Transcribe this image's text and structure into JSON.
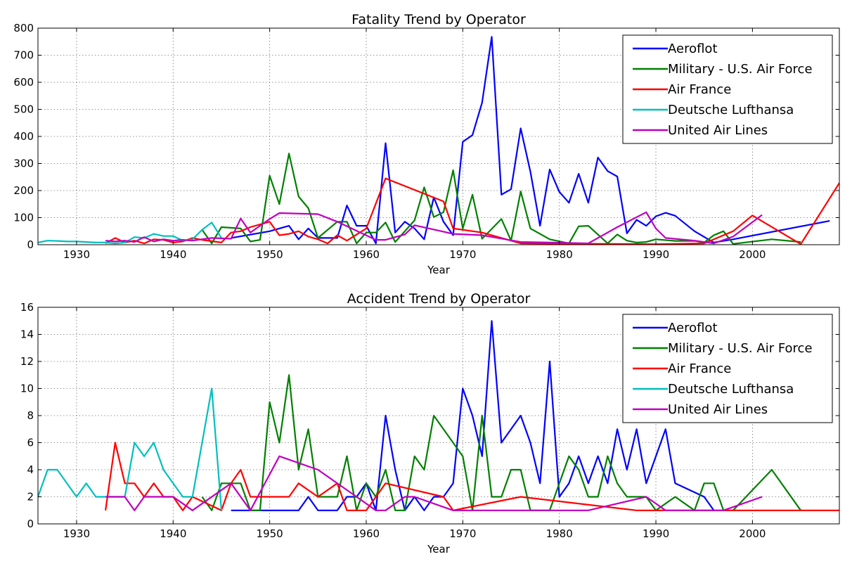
{
  "chart_data": [
    {
      "type": "line",
      "title": "Fatality Trend by Operator",
      "xlabel": "Year",
      "ylabel": "",
      "xlim": [
        1926,
        2009
      ],
      "ylim": [
        0,
        800
      ],
      "xticks": [
        1930,
        1940,
        1950,
        1960,
        1970,
        1980,
        1990,
        2000
      ],
      "yticks": [
        0,
        100,
        200,
        300,
        400,
        500,
        600,
        700,
        800
      ],
      "grid": true,
      "legend_position": "top-right",
      "series": [
        {
          "name": "Aeroflot",
          "color": "#0000ff",
          "x": [
            1946,
            1950,
            1952,
            1953,
            1954,
            1955,
            1957,
            1958,
            1959,
            1960,
            1961,
            1962,
            1963,
            1964,
            1965,
            1966,
            1967,
            1968,
            1969,
            1970,
            1971,
            1972,
            1973,
            1974,
            1975,
            1976,
            1977,
            1978,
            1979,
            1980,
            1981,
            1982,
            1983,
            1984,
            1985,
            1986,
            1987,
            1988,
            1989,
            1990,
            1991,
            1992,
            1994,
            1996,
            1998,
            2008
          ],
          "y": [
            25,
            50,
            70,
            20,
            60,
            25,
            25,
            145,
            70,
            70,
            5,
            375,
            45,
            85,
            60,
            20,
            175,
            85,
            35,
            380,
            405,
            525,
            768,
            185,
            205,
            430,
            270,
            70,
            278,
            195,
            155,
            262,
            155,
            322,
            272,
            252,
            42,
            92,
            70,
            105,
            118,
            107,
            50,
            8,
            20,
            88
          ]
        },
        {
          "name": "Military - U.S. Air Force",
          "color": "#008000",
          "x": [
            1943,
            1944,
            1945,
            1947,
            1948,
            1949,
            1950,
            1951,
            1952,
            1953,
            1954,
            1955,
            1957,
            1958,
            1959,
            1960,
            1961,
            1962,
            1963,
            1965,
            1966,
            1967,
            1968,
            1969,
            1970,
            1971,
            1972,
            1974,
            1975,
            1976,
            1977,
            1979,
            1981,
            1982,
            1983,
            1985,
            1986,
            1987,
            1988,
            1989,
            1990,
            1992,
            1994,
            1995,
            1996,
            1997,
            1998,
            2002,
            2005
          ],
          "y": [
            55,
            5,
            65,
            60,
            12,
            18,
            255,
            150,
            337,
            178,
            135,
            25,
            85,
            85,
            5,
            45,
            45,
            82,
            10,
            90,
            212,
            102,
            120,
            275,
            60,
            185,
            22,
            95,
            15,
            197,
            60,
            20,
            5,
            68,
            70,
            5,
            38,
            15,
            8,
            10,
            20,
            14,
            14,
            8,
            35,
            50,
            3,
            20,
            10
          ]
        },
        {
          "name": "Air France",
          "color": "#ff0000",
          "x": [
            1933,
            1934,
            1935,
            1936,
            1937,
            1938,
            1939,
            1940,
            1941,
            1942,
            1943,
            1945,
            1946,
            1947,
            1948,
            1950,
            1951,
            1952,
            1953,
            1954,
            1955,
            1956,
            1957,
            1958,
            1960,
            1962,
            1968,
            1969,
            1972,
            1976,
            1989,
            1990,
            1995,
            1998,
            2000,
            2005,
            2009
          ],
          "y": [
            5,
            25,
            8,
            15,
            5,
            20,
            18,
            8,
            12,
            25,
            18,
            8,
            45,
            50,
            65,
            85,
            35,
            40,
            50,
            30,
            20,
            5,
            35,
            15,
            60,
            245,
            160,
            60,
            45,
            5,
            2,
            2,
            5,
            50,
            108,
            2,
            228
          ]
        },
        {
          "name": "Deutsche Lufthansa",
          "color": "#00bfbf",
          "x": [
            1926,
            1927,
            1928,
            1929,
            1930,
            1931,
            1932,
            1933,
            1934,
            1935,
            1936,
            1937,
            1938,
            1939,
            1940,
            1941,
            1942,
            1943,
            1944,
            1945
          ],
          "y": [
            8,
            15,
            14,
            12,
            12,
            10,
            8,
            8,
            5,
            8,
            28,
            25,
            40,
            32,
            32,
            15,
            20,
            55,
            82,
            25
          ]
        },
        {
          "name": "United Air Lines",
          "color": "#bf00bf",
          "x": [
            1933,
            1934,
            1935,
            1936,
            1937,
            1938,
            1939,
            1940,
            1941,
            1942,
            1944,
            1946,
            1947,
            1948,
            1949,
            1950,
            1951,
            1955,
            1957,
            1961,
            1962,
            1964,
            1965,
            1969,
            1972,
            1976,
            1979,
            1983,
            1986,
            1989,
            1990,
            1991,
            1994,
            1996,
            1998,
            2001
          ],
          "y": [
            15,
            12,
            15,
            10,
            28,
            12,
            20,
            15,
            18,
            15,
            25,
            22,
            97,
            45,
            70,
            95,
            117,
            113,
            85,
            18,
            18,
            38,
            72,
            40,
            35,
            10,
            8,
            5,
            65,
            120,
            60,
            25,
            15,
            5,
            30,
            110
          ]
        }
      ]
    },
    {
      "type": "line",
      "title": "Accident Trend by Operator",
      "xlabel": "Year",
      "ylabel": "",
      "xlim": [
        1926,
        2009
      ],
      "ylim": [
        0,
        16
      ],
      "xticks": [
        1930,
        1940,
        1950,
        1960,
        1970,
        1980,
        1990,
        2000
      ],
      "yticks": [
        0,
        2,
        4,
        6,
        8,
        10,
        12,
        14,
        16
      ],
      "grid": true,
      "legend_position": "top-right",
      "series": [
        {
          "name": "Aeroflot",
          "color": "#0000ff",
          "x": [
            1946,
            1950,
            1953,
            1954,
            1955,
            1957,
            1958,
            1959,
            1960,
            1961,
            1962,
            1963,
            1964,
            1965,
            1966,
            1967,
            1968,
            1969,
            1970,
            1971,
            1972,
            1973,
            1974,
            1976,
            1977,
            1978,
            1979,
            1980,
            1981,
            1982,
            1983,
            1984,
            1985,
            1986,
            1987,
            1988,
            1989,
            1991,
            1992,
            1995,
            1996
          ],
          "y": [
            1,
            1,
            1,
            2,
            1,
            1,
            2,
            2,
            3,
            1,
            8,
            4,
            1,
            2,
            1,
            2,
            2,
            3,
            10,
            8,
            5,
            15,
            6,
            8,
            6,
            3,
            12,
            2,
            3,
            5,
            3,
            5,
            3,
            7,
            4,
            7,
            3,
            7,
            3,
            2,
            1
          ]
        },
        {
          "name": "Military - U.S. Air Force",
          "color": "#008000",
          "x": [
            1943,
            1944,
            1945,
            1947,
            1948,
            1949,
            1950,
            1951,
            1952,
            1953,
            1954,
            1955,
            1956,
            1957,
            1958,
            1959,
            1960,
            1961,
            1962,
            1963,
            1964,
            1965,
            1966,
            1967,
            1970,
            1971,
            1972,
            1973,
            1974,
            1975,
            1976,
            1977,
            1979,
            1981,
            1982,
            1983,
            1984,
            1985,
            1986,
            1987,
            1988,
            1989,
            1990,
            1992,
            1994,
            1995,
            1996,
            1997,
            1998,
            2002,
            2005
          ],
          "y": [
            2,
            1,
            3,
            3,
            1,
            1,
            9,
            6,
            11,
            4,
            7,
            2,
            2,
            2,
            5,
            1,
            3,
            2,
            4,
            1,
            1,
            5,
            4,
            8,
            5,
            1,
            8,
            2,
            2,
            4,
            4,
            1,
            1,
            5,
            4,
            2,
            2,
            5,
            3,
            2,
            2,
            2,
            1,
            2,
            1,
            3,
            3,
            1,
            1,
            4,
            1
          ]
        },
        {
          "name": "Air France",
          "color": "#ff0000",
          "x": [
            1933,
            1934,
            1935,
            1936,
            1937,
            1938,
            1939,
            1940,
            1941,
            1942,
            1945,
            1946,
            1947,
            1948,
            1950,
            1952,
            1953,
            1955,
            1957,
            1958,
            1960,
            1962,
            1968,
            1969,
            1976,
            1988,
            2009
          ],
          "y": [
            1,
            6,
            3,
            3,
            2,
            3,
            2,
            2,
            1,
            2,
            1,
            3,
            4,
            2,
            2,
            2,
            3,
            2,
            3,
            1,
            1,
            3,
            2,
            1,
            2,
            1,
            1
          ]
        },
        {
          "name": "Deutsche Lufthansa",
          "color": "#00bfbf",
          "x": [
            1926,
            1927,
            1928,
            1930,
            1931,
            1932,
            1933,
            1935,
            1936,
            1937,
            1938,
            1939,
            1940,
            1941,
            1942,
            1944,
            1945
          ],
          "y": [
            2,
            4,
            4,
            2,
            3,
            2,
            2,
            2,
            6,
            5,
            6,
            4,
            3,
            2,
            2,
            10,
            1
          ]
        },
        {
          "name": "United Air Lines",
          "color": "#bf00bf",
          "x": [
            1933,
            1935,
            1936,
            1937,
            1940,
            1942,
            1946,
            1948,
            1951,
            1955,
            1959,
            1961,
            1962,
            1964,
            1965,
            1969,
            1983,
            1989,
            1991,
            1997,
            2001
          ],
          "y": [
            2,
            2,
            1,
            2,
            2,
            1,
            3,
            1,
            5,
            4,
            2,
            1,
            1,
            2,
            2,
            1,
            1,
            2,
            1,
            1,
            2
          ]
        }
      ]
    }
  ]
}
